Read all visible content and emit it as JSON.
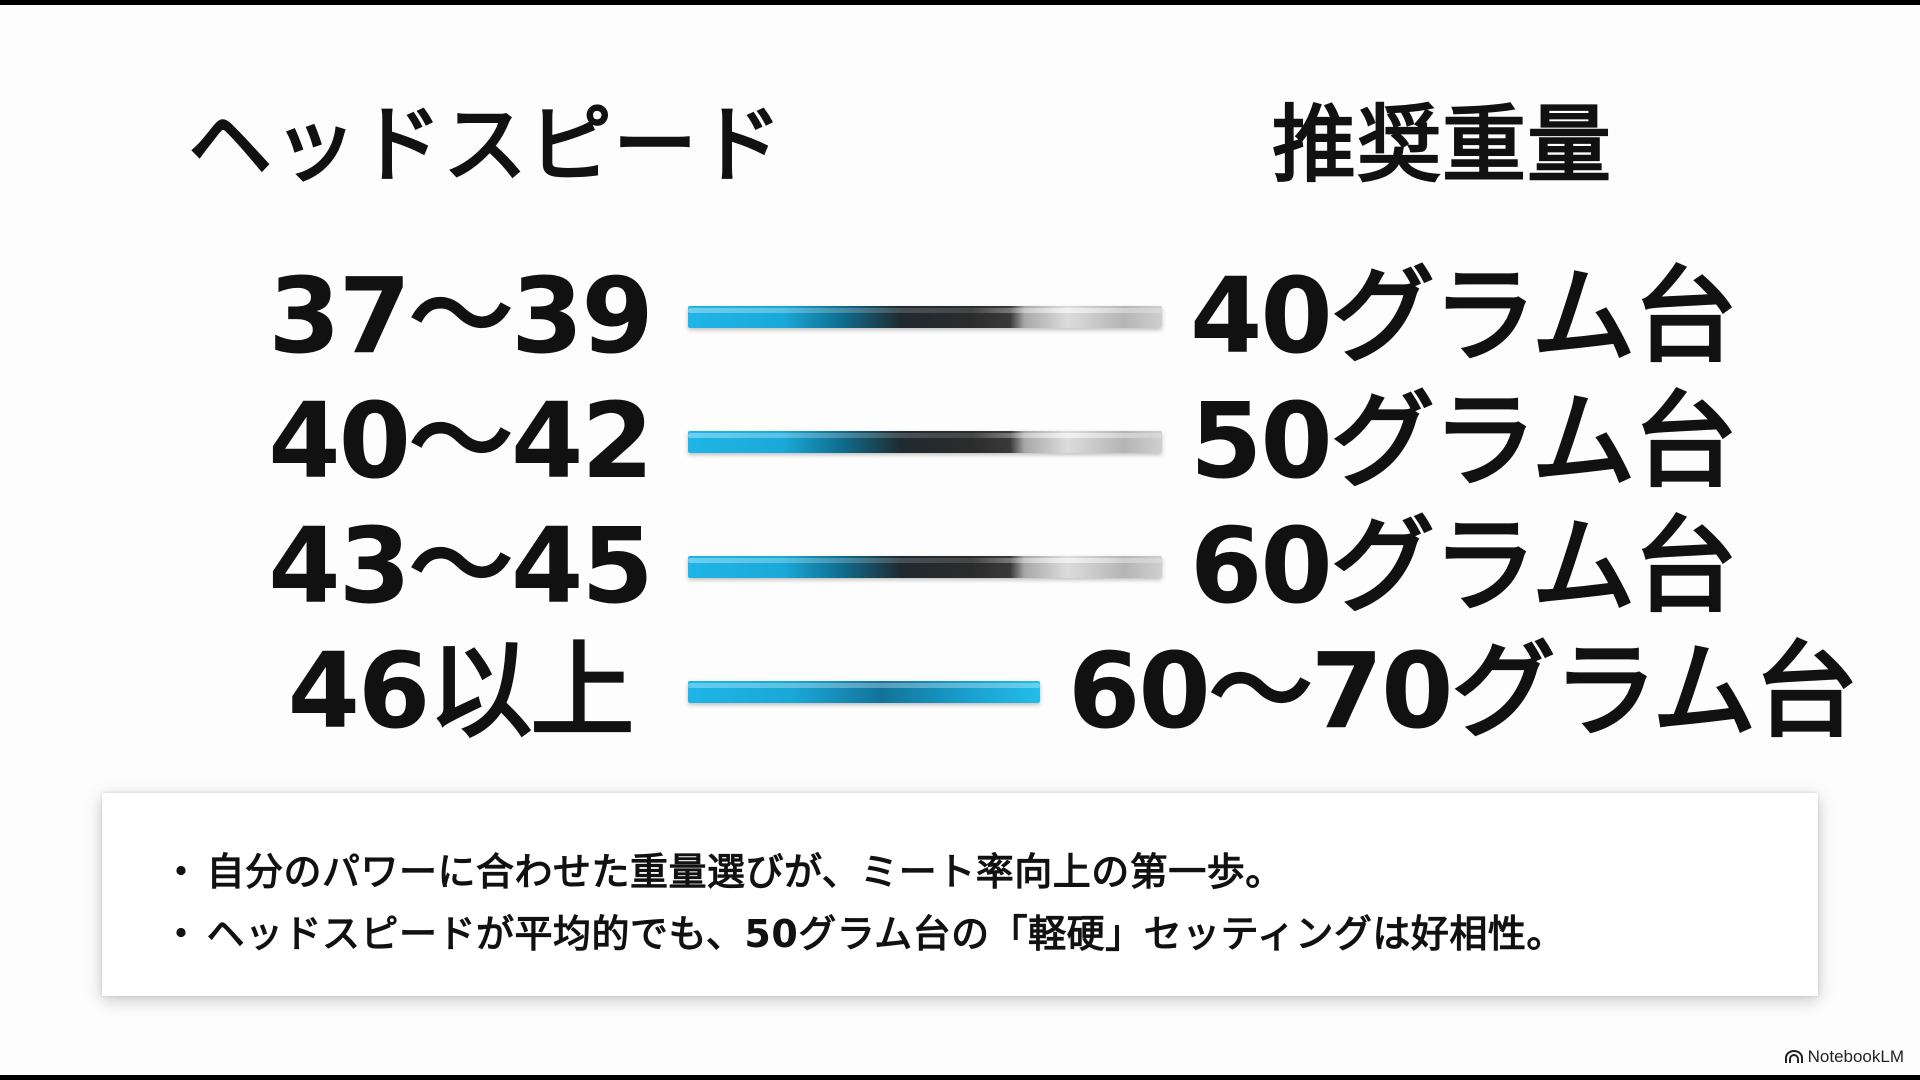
{
  "headers": {
    "left": "ヘッドスピード",
    "right": "推奨重量"
  },
  "rows": [
    {
      "speed": "37〜39",
      "weight": "40グラム台"
    },
    {
      "speed": "40〜42",
      "weight": "50グラム台"
    },
    {
      "speed": "43〜45",
      "weight": "60グラム台"
    },
    {
      "speed": "46以上",
      "weight": "60〜70グラム台"
    }
  ],
  "notes": {
    "bullet": "・",
    "items": [
      "自分のパワーに合わせた重量選びが、ミート率向上の第一歩。",
      "ヘッドスピードが平均的でも、50グラム台の「軽硬」セッティングは好相性。"
    ]
  },
  "brand": {
    "name": "NotebookLM",
    "icon": "notebooklm-logo-icon"
  },
  "colors": {
    "shaft_blue": "#1fb5e6",
    "shaft_steel": "#c8c8c8",
    "text": "#111111"
  }
}
